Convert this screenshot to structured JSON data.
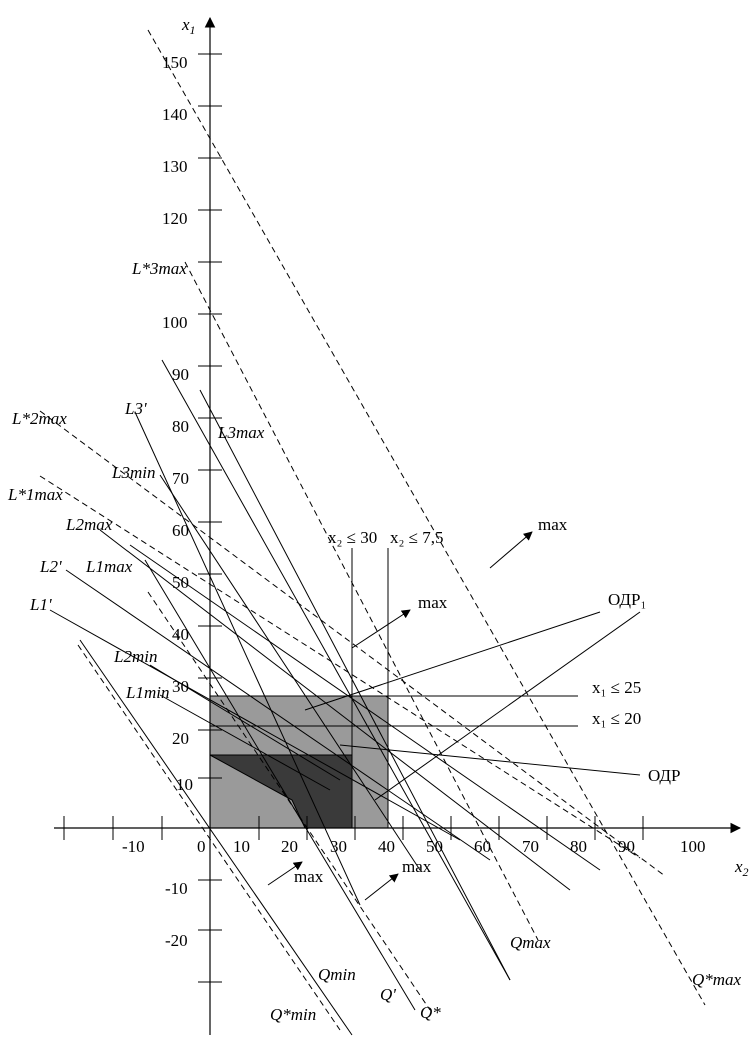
{
  "axes": {
    "x_axis_label": "x",
    "x_axis_sub": "2",
    "y_axis_label": "x",
    "y_axis_sub": "1",
    "x_ticks": [
      "-10",
      "0",
      "10",
      "20",
      "30",
      "40",
      "50",
      "60",
      "70",
      "80",
      "90",
      "100"
    ],
    "y_ticks": [
      "150",
      "140",
      "130",
      "120",
      "100",
      "90",
      "80",
      "70",
      "60",
      "50",
      "40",
      "30",
      "20",
      "10",
      "-10",
      "-20"
    ]
  },
  "constraints": {
    "x2_le_30": "x₂ ≤ 30",
    "x2_le_7_5": "x₂ ≤  7,5",
    "x1_le_25": "x₁ ≤ 25",
    "x1_le_20": "x₁ ≤ 20"
  },
  "regions": {
    "odr1": "ОДР₁",
    "odr": "ОДР",
    "colors": {
      "light": "#9a9a9a",
      "dark": "#3a3a3a"
    }
  },
  "line_labels": {
    "L3max_star": "L*3max",
    "L2max_star": "L*2max",
    "L1max_star": "L*1max",
    "L3_prime": "L3'",
    "L3max": "L3max",
    "L3min": "L3min",
    "L2max": "L2max",
    "L2_prime": "L2'",
    "L1max": "L1max",
    "L1_prime": "L1'",
    "L2min": "L2min",
    "L1min": "L1min",
    "Qmax": "Qmax",
    "Qstar_max": "Q*max",
    "Qmin": "Qmin",
    "Qstar_min": "Q*min",
    "Q_prime": "Q'",
    "Q_star": "Q*"
  },
  "arrows": {
    "max_label": "max"
  }
}
